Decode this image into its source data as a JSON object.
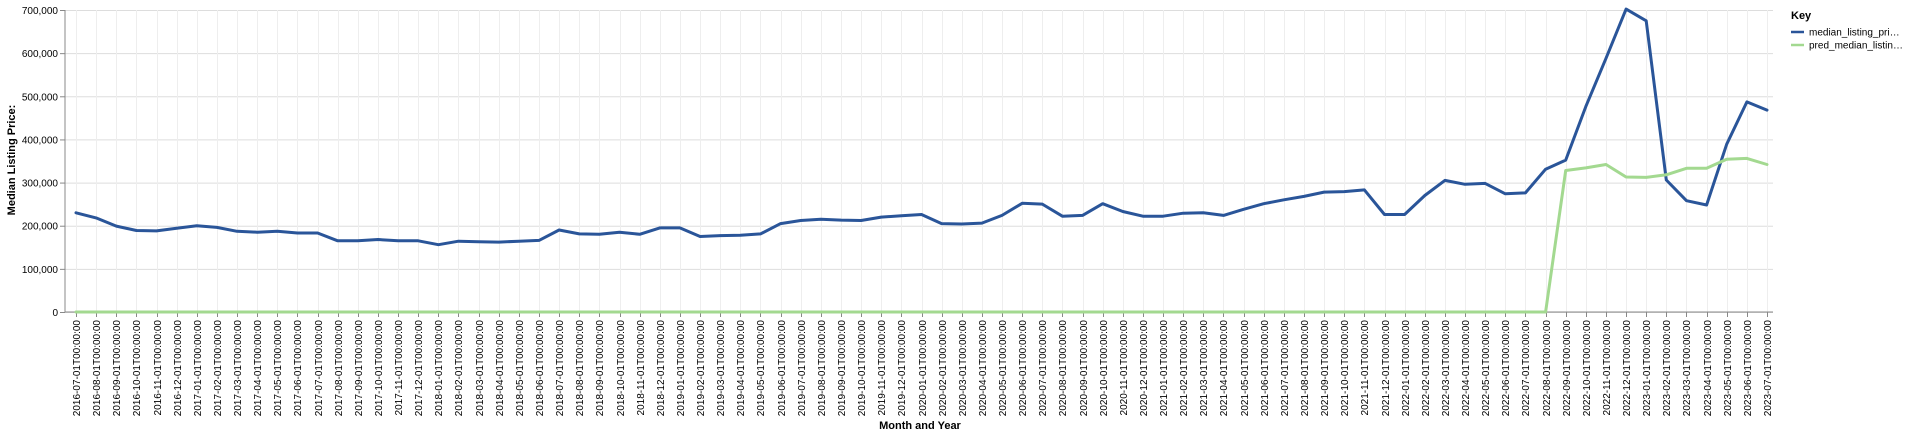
{
  "chart_data": {
    "type": "line",
    "xlabel": "Month and Year",
    "ylabel": "Median Listing Price:",
    "ylim": [
      0,
      700000
    ],
    "yticks": [
      0,
      100000,
      200000,
      300000,
      400000,
      500000,
      600000,
      700000
    ],
    "ytick_labels": [
      "0",
      "100,000",
      "200,000",
      "300,000",
      "400,000",
      "500,000",
      "600,000",
      "700,000"
    ],
    "grid": true,
    "legend": {
      "title": "Key",
      "position": "right"
    },
    "x": [
      "2016-07-01T00:00:00",
      "2016-08-01T00:00:00",
      "2016-09-01T00:00:00",
      "2016-10-01T00:00:00",
      "2016-11-01T00:00:00",
      "2016-12-01T00:00:00",
      "2017-01-01T00:00:00",
      "2017-02-01T00:00:00",
      "2017-03-01T00:00:00",
      "2017-04-01T00:00:00",
      "2017-05-01T00:00:00",
      "2017-06-01T00:00:00",
      "2017-07-01T00:00:00",
      "2017-08-01T00:00:00",
      "2017-09-01T00:00:00",
      "2017-10-01T00:00:00",
      "2017-11-01T00:00:00",
      "2017-12-01T00:00:00",
      "2018-01-01T00:00:00",
      "2018-02-01T00:00:00",
      "2018-03-01T00:00:00",
      "2018-04-01T00:00:00",
      "2018-05-01T00:00:00",
      "2018-06-01T00:00:00",
      "2018-07-01T00:00:00",
      "2018-08-01T00:00:00",
      "2018-09-01T00:00:00",
      "2018-10-01T00:00:00",
      "2018-11-01T00:00:00",
      "2018-12-01T00:00:00",
      "2019-01-01T00:00:00",
      "2019-02-01T00:00:00",
      "2019-03-01T00:00:00",
      "2019-04-01T00:00:00",
      "2019-05-01T00:00:00",
      "2019-06-01T00:00:00",
      "2019-07-01T00:00:00",
      "2019-08-01T00:00:00",
      "2019-09-01T00:00:00",
      "2019-10-01T00:00:00",
      "2019-11-01T00:00:00",
      "2019-12-01T00:00:00",
      "2020-01-01T00:00:00",
      "2020-02-01T00:00:00",
      "2020-03-01T00:00:00",
      "2020-04-01T00:00:00",
      "2020-05-01T00:00:00",
      "2020-06-01T00:00:00",
      "2020-07-01T00:00:00",
      "2020-08-01T00:00:00",
      "2020-09-01T00:00:00",
      "2020-10-01T00:00:00",
      "2020-11-01T00:00:00",
      "2020-12-01T00:00:00",
      "2021-01-01T00:00:00",
      "2021-02-01T00:00:00",
      "2021-03-01T00:00:00",
      "2021-04-01T00:00:00",
      "2021-05-01T00:00:00",
      "2021-06-01T00:00:00",
      "2021-07-01T00:00:00",
      "2021-08-01T00:00:00",
      "2021-09-01T00:00:00",
      "2021-10-01T00:00:00",
      "2021-11-01T00:00:00",
      "2021-12-01T00:00:00",
      "2022-01-01T00:00:00",
      "2022-02-01T00:00:00",
      "2022-03-01T00:00:00",
      "2022-04-01T00:00:00",
      "2022-05-01T00:00:00",
      "2022-06-01T00:00:00",
      "2022-07-01T00:00:00",
      "2022-08-01T00:00:00",
      "2022-09-01T00:00:00",
      "2022-10-01T00:00:00",
      "2022-11-01T00:00:00",
      "2022-12-01T00:00:00",
      "2023-01-01T00:00:00",
      "2023-02-01T00:00:00",
      "2023-03-01T00:00:00",
      "2023-04-01T00:00:00",
      "2023-05-01T00:00:00",
      "2023-06-01T00:00:00",
      "2023-07-01T00:00:00"
    ],
    "series": [
      {
        "name": "median_listing_pri…",
        "color": "#2a5599",
        "values": [
          230000,
          218000,
          199000,
          189000,
          188000,
          194000,
          200000,
          196000,
          187000,
          185000,
          187000,
          183000,
          183000,
          165000,
          165000,
          168000,
          165000,
          165000,
          156000,
          164000,
          163000,
          162000,
          164000,
          166000,
          190000,
          181000,
          180000,
          185000,
          180000,
          195000,
          195000,
          175000,
          177000,
          178000,
          181000,
          205000,
          212000,
          215000,
          213000,
          212000,
          220000,
          223000,
          226000,
          205000,
          204000,
          206000,
          224000,
          252000,
          250000,
          222000,
          224000,
          251000,
          233000,
          222000,
          222000,
          229000,
          230000,
          224000,
          238000,
          251000,
          260000,
          268000,
          278000,
          279000,
          283000,
          226000,
          226000,
          270000,
          305000,
          296000,
          298000,
          274000,
          276000,
          331000,
          352000,
          476000,
          588000,
          702000,
          675000,
          306000,
          258000,
          248000,
          389000,
          487000,
          468000
        ]
      },
      {
        "name": "pred_median_listin…",
        "color": "#a3d990",
        "values": [
          0,
          0,
          0,
          0,
          0,
          0,
          0,
          0,
          0,
          0,
          0,
          0,
          0,
          0,
          0,
          0,
          0,
          0,
          0,
          0,
          0,
          0,
          0,
          0,
          0,
          0,
          0,
          0,
          0,
          0,
          0,
          0,
          0,
          0,
          0,
          0,
          0,
          0,
          0,
          0,
          0,
          0,
          0,
          0,
          0,
          0,
          0,
          0,
          0,
          0,
          0,
          0,
          0,
          0,
          0,
          0,
          0,
          0,
          0,
          0,
          0,
          0,
          0,
          0,
          0,
          0,
          0,
          0,
          0,
          0,
          0,
          0,
          0,
          0,
          328000,
          334000,
          342000,
          313000,
          312000,
          318000,
          333000,
          333000,
          354000,
          356000,
          342000
        ]
      }
    ]
  }
}
